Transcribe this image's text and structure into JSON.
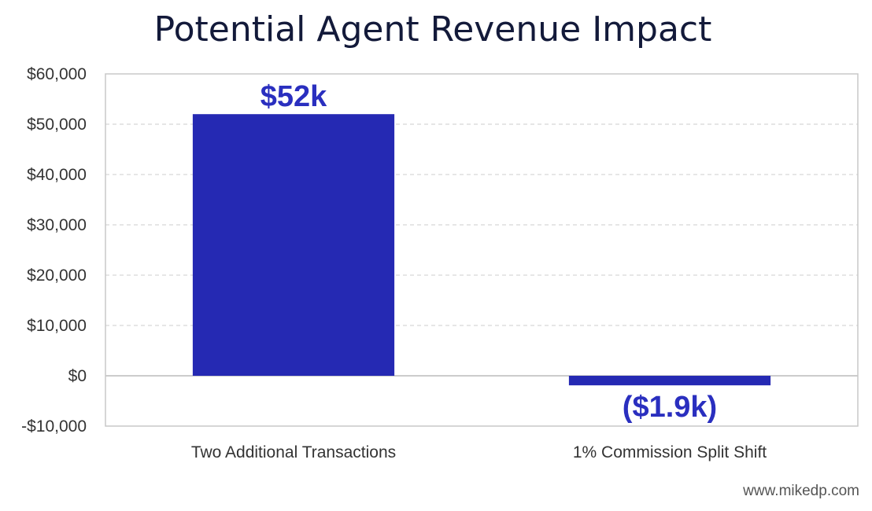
{
  "chart_data": {
    "type": "bar",
    "title": "Potential Agent Revenue Impact",
    "categories": [
      "Two Additional Transactions",
      "1% Commission Split Shift"
    ],
    "values": [
      52000,
      -1900
    ],
    "data_labels": [
      "$52k",
      "($1.9k)"
    ],
    "ylim": [
      -10000,
      60000
    ],
    "yticks": [
      -10000,
      0,
      10000,
      20000,
      30000,
      40000,
      50000,
      60000
    ],
    "ytick_labels": [
      "-$10,000",
      "$0",
      "$10,000",
      "$20,000",
      "$30,000",
      "$40,000",
      "$50,000",
      "$60,000"
    ],
    "xlabel": "",
    "ylabel": "",
    "grid": true,
    "legend": "none",
    "bar_color": "#2529b3",
    "label_color": "#2a2fbf"
  },
  "source": "www.mikedp.com"
}
